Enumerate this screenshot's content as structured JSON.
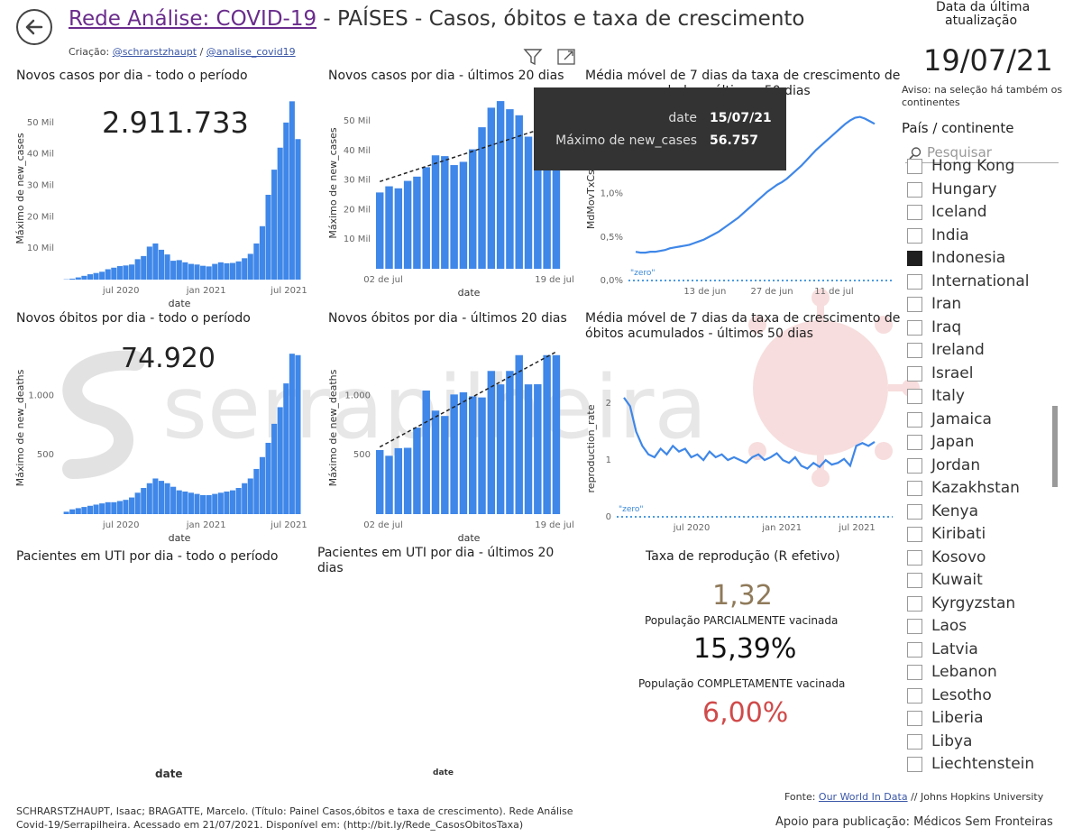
{
  "header": {
    "back_label": "",
    "title_link": "Rede Análise: COVID-19",
    "title_rest": " - PAÍSES - Casos, óbitos e taxa de crescimento",
    "credits_prefix": "Criação: ",
    "credit_1": "@schrarstzhaupt",
    "credit_sep": " / ",
    "credit_2": "@analise_covid19"
  },
  "update": {
    "label_line1": "Data da última",
    "label_line2": "atualização",
    "date": "19/07/21",
    "notice": "Aviso: na seleção há também os continentes"
  },
  "slicer": {
    "title": "País / continente",
    "search_placeholder": "Pesquisar",
    "items": [
      {
        "label": "Hong Kong",
        "checked": false
      },
      {
        "label": "Hungary",
        "checked": false
      },
      {
        "label": "Iceland",
        "checked": false
      },
      {
        "label": "India",
        "checked": false
      },
      {
        "label": "Indonesia",
        "checked": true
      },
      {
        "label": "International",
        "checked": false
      },
      {
        "label": "Iran",
        "checked": false
      },
      {
        "label": "Iraq",
        "checked": false
      },
      {
        "label": "Ireland",
        "checked": false
      },
      {
        "label": "Israel",
        "checked": false
      },
      {
        "label": "Italy",
        "checked": false
      },
      {
        "label": "Jamaica",
        "checked": false
      },
      {
        "label": "Japan",
        "checked": false
      },
      {
        "label": "Jordan",
        "checked": false
      },
      {
        "label": "Kazakhstan",
        "checked": false
      },
      {
        "label": "Kenya",
        "checked": false
      },
      {
        "label": "Kiribati",
        "checked": false
      },
      {
        "label": "Kosovo",
        "checked": false
      },
      {
        "label": "Kuwait",
        "checked": false
      },
      {
        "label": "Kyrgyzstan",
        "checked": false
      },
      {
        "label": "Laos",
        "checked": false
      },
      {
        "label": "Latvia",
        "checked": false
      },
      {
        "label": "Lebanon",
        "checked": false
      },
      {
        "label": "Lesotho",
        "checked": false
      },
      {
        "label": "Liberia",
        "checked": false
      },
      {
        "label": "Libya",
        "checked": false
      },
      {
        "label": "Liechtenstein",
        "checked": false
      }
    ]
  },
  "tooltip": {
    "k1": "date",
    "v1": "15/07/21",
    "k2": "Máximo de new_cases",
    "v2": "56.757"
  },
  "kpis": {
    "total_cases": "2.911.733",
    "total_deaths": "74.920",
    "r_title": "Taxa de reprodução (R efetivo)",
    "r_value": "1,32",
    "partial_label": "População PARCIALMENTE vacinada",
    "partial_value": "15,39%",
    "full_label": "População COMPLETAMENTE vacinada",
    "full_value": "6,00%"
  },
  "titles": {
    "cases_all": "Novos casos por dia - todo o período",
    "cases_20": "Novos casos por dia - últimos 20 dias",
    "growth_cases": "Média móvel de 7 dias da taxa de crescimento de casos acumulados - últimos 50 dias",
    "growth_cases_line1": "Média móvel de 7 dias da taxa de crescimento de",
    "growth_cases_line2": "casos acumulados - últimos 50 dias",
    "deaths_all": "Novos óbitos por dia - todo o período",
    "deaths_20": "Novos óbitos por dia - últimos 20 dias",
    "growth_deaths_line1": "Média móvel de 7 dias da taxa de crescimento de",
    "growth_deaths_line2": "óbitos acumulados - últimos 50 dias",
    "icu_all": "Pacientes em UTI por dia - todo o período",
    "icu_20_line1": "Pacientes em UTI por dia - últimos 20",
    "icu_20_line2": "dias",
    "icu_xlabel": "date"
  },
  "footer": {
    "citation_line1": "SCHRARSTZHAUPT, Isaac; BRAGATTE, Marcelo. (Título: Painel Casos,óbitos e taxa de crescimento). Rede Análise",
    "citation_line2": "Covid-19/Serrapilheira. Acessado em 21/07/2021. Disponível em: (http://bit.ly/Rede_CasosObitosTaxa)",
    "source_prefix": "Fonte: ",
    "source_link": "Our World In Data",
    "source_rest": " // Johns Hopkins University",
    "support": "Apoio para publicação: Médicos Sem Fronteiras",
    "watermark": "serrapilheira"
  },
  "colors": {
    "bar": "#3f87e8",
    "trend": "#222222",
    "zero": "#4c9be0",
    "r_value": "#8f7a5a",
    "full_value": "#d04a4a",
    "link": "#6a2c8c"
  },
  "chart_data": [
    {
      "id": "cases_all",
      "type": "area",
      "title": "Novos casos por dia - todo o período",
      "xlabel": "date",
      "ylabel": "Máximo de new_cases",
      "x_ticks": [
        "jul 2020",
        "jan 2021",
        "jul 2021"
      ],
      "y_ticks": [
        "10 Mil",
        "20 Mil",
        "30 Mil",
        "40 Mil",
        "50 Mil"
      ],
      "ylim": [
        0,
        58000
      ],
      "x_range": [
        "2020-03-02",
        "2021-07-19"
      ],
      "series": [
        {
          "values_sampled": [
            0,
            100,
            300,
            700,
            1200,
            1700,
            2100,
            2500,
            3300,
            3800,
            4300,
            4500,
            4800,
            6500,
            7500,
            10500,
            11500,
            9500,
            8000,
            6000,
            6200,
            5500,
            5000,
            4800,
            4400,
            4200,
            5000,
            5500,
            5200,
            5300,
            5800,
            6800,
            8200,
            11500,
            17000,
            27000,
            35000,
            42000,
            50000,
            56757,
            44721
          ]
        }
      ]
    },
    {
      "id": "cases_20",
      "type": "bar",
      "title": "Novos casos por dia - últimos 20 dias",
      "xlabel": "date",
      "ylabel": "Máximo de new_cases",
      "x_ticks": [
        "02 de jul",
        "19 de jul"
      ],
      "y_ticks": [
        "10 Mil",
        "20 Mil",
        "30 Mil",
        "40 Mil",
        "50 Mil"
      ],
      "ylim": [
        0,
        58000
      ],
      "values": [
        25830,
        27913,
        27233,
        29745,
        31189,
        34379,
        38391,
        38124,
        35094,
        36197,
        40427,
        47899,
        54517,
        56757,
        54000,
        51952,
        44721,
        38325,
        34257,
        38325
      ],
      "trendline": true
    },
    {
      "id": "growth_cases",
      "type": "line",
      "title": "Média móvel de 7 dias da taxa de crescimento de casos acumulados - últimos 50 dias",
      "ylabel": "MdMovTxCsAc",
      "x_ticks": [
        "13 de jun",
        "27 de jun",
        "11 de jul"
      ],
      "y_ticks": [
        "0,0%",
        "0,5%",
        "1,0%"
      ],
      "ylim": [
        0,
        2.0
      ],
      "values": [
        0.33,
        0.32,
        0.32,
        0.33,
        0.33,
        0.34,
        0.35,
        0.37,
        0.38,
        0.39,
        0.4,
        0.41,
        0.43,
        0.45,
        0.47,
        0.5,
        0.53,
        0.56,
        0.6,
        0.64,
        0.68,
        0.72,
        0.77,
        0.82,
        0.87,
        0.92,
        0.97,
        1.02,
        1.06,
        1.1,
        1.13,
        1.17,
        1.22,
        1.27,
        1.32,
        1.38,
        1.44,
        1.5,
        1.55,
        1.6,
        1.65,
        1.7,
        1.75,
        1.8,
        1.84,
        1.87,
        1.88,
        1.86,
        1.83,
        1.8
      ],
      "zero_label": "\"zero\""
    },
    {
      "id": "deaths_all",
      "type": "area",
      "title": "Novos óbitos por dia - todo o período",
      "xlabel": "date",
      "ylabel": "Máximo de new_deaths",
      "x_ticks": [
        "jul 2020",
        "jan 2021",
        "jul 2021"
      ],
      "y_ticks": [
        "500",
        "1.000"
      ],
      "ylim": [
        0,
        1450
      ],
      "x_range": [
        "2020-03-02",
        "2021-07-19"
      ],
      "series": [
        {
          "values_sampled": [
            0,
            20,
            40,
            50,
            60,
            70,
            80,
            90,
            100,
            100,
            110,
            120,
            140,
            180,
            220,
            260,
            300,
            280,
            260,
            230,
            200,
            190,
            180,
            170,
            160,
            160,
            170,
            180,
            190,
            200,
            220,
            260,
            300,
            380,
            480,
            600,
            760,
            900,
            1100,
            1350,
            1338
          ]
        }
      ]
    },
    {
      "id": "deaths_20",
      "type": "bar",
      "title": "Novos óbitos por dia - últimos 20 dias",
      "xlabel": "date",
      "ylabel": "Máximo de new_deaths",
      "x_ticks": [
        "02 de jul",
        "19 de jul"
      ],
      "y_ticks": [
        "500",
        "1.000"
      ],
      "ylim": [
        0,
        1450
      ],
      "values": [
        539,
        491,
        555,
        558,
        728,
        1040,
        871,
        826,
        1007,
        1025,
        991,
        982,
        1205,
        1092,
        1205,
        1338,
        1092,
        1093,
        1338,
        1338
      ],
      "trendline": true
    },
    {
      "id": "growth_deaths",
      "type": "line",
      "title": "Média móvel de 7 dias da taxa de crescimento de óbitos acumulados - últimos 50 dias",
      "ylabel": "reproduction_rate",
      "x_ticks": [
        "jul 2020",
        "jan 2021",
        "jul 2021"
      ],
      "y_ticks": [
        "0",
        "1",
        "2"
      ],
      "ylim": [
        0,
        2.4
      ],
      "values": [
        2.1,
        1.95,
        1.5,
        1.25,
        1.1,
        1.05,
        1.2,
        1.1,
        1.25,
        1.15,
        1.2,
        1.05,
        1.1,
        1.0,
        1.15,
        1.05,
        1.1,
        1.0,
        1.05,
        1.0,
        0.95,
        1.05,
        1.1,
        1.0,
        1.05,
        1.12,
        1.0,
        0.95,
        1.05,
        0.9,
        0.85,
        0.95,
        0.88,
        1.0,
        0.92,
        0.95,
        1.02,
        0.9,
        1.25,
        1.3,
        1.25,
        1.32
      ],
      "zero_label": "\"zero\""
    }
  ]
}
